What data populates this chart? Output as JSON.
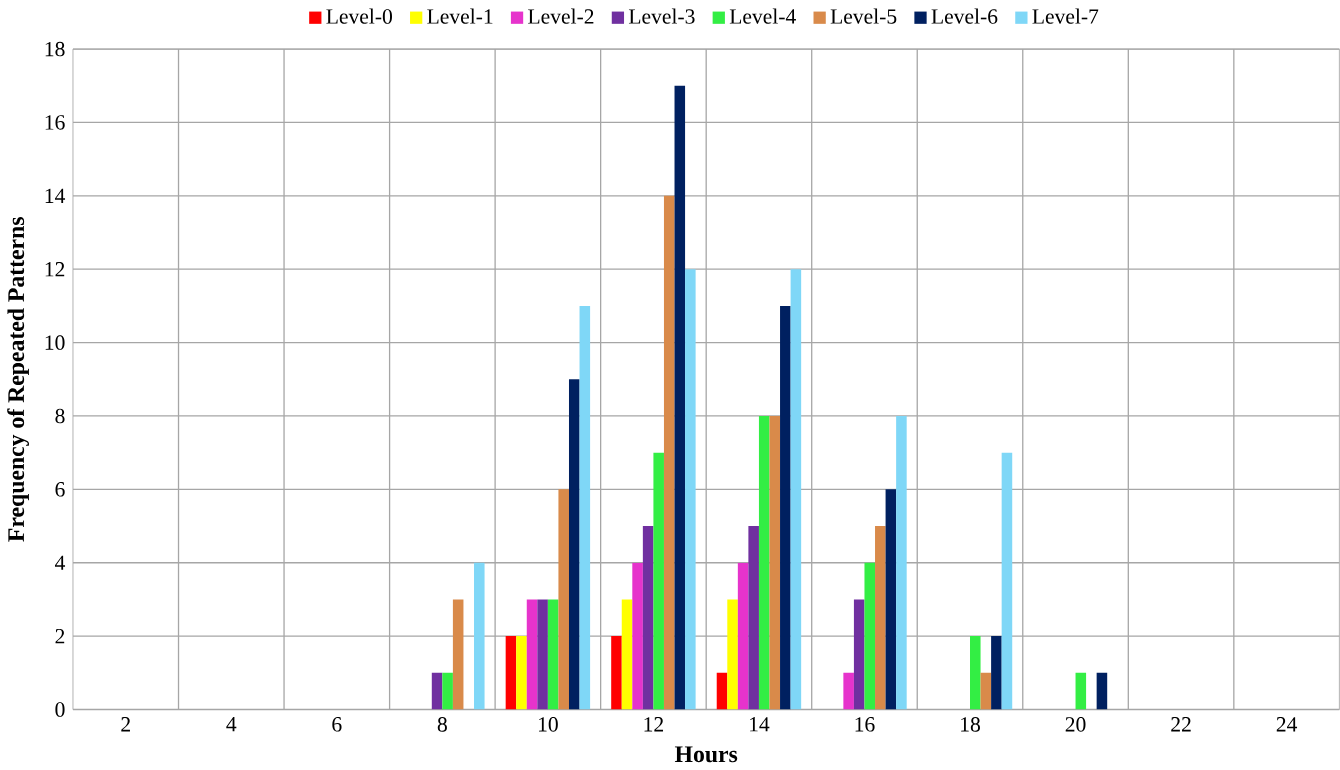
{
  "chart_data": {
    "type": "bar",
    "xlabel": "Hours",
    "ylabel": "Frequency of Repeated Patterns",
    "categories": [
      "2",
      "4",
      "6",
      "8",
      "10",
      "12",
      "14",
      "16",
      "18",
      "20",
      "22",
      "24"
    ],
    "series": [
      {
        "name": "Level-0",
        "color": "#ff0000",
        "values": [
          0,
          0,
          0,
          0,
          2,
          2,
          1,
          0,
          0,
          0,
          0,
          0
        ]
      },
      {
        "name": "Level-1",
        "color": "#ffff00",
        "values": [
          0,
          0,
          0,
          0,
          2,
          3,
          3,
          0,
          0,
          0,
          0,
          0
        ]
      },
      {
        "name": "Level-2",
        "color": "#e633cc",
        "values": [
          0,
          0,
          0,
          0,
          3,
          4,
          4,
          1,
          0,
          0,
          0,
          0
        ]
      },
      {
        "name": "Level-3",
        "color": "#7030a0",
        "values": [
          0,
          0,
          0,
          1,
          3,
          5,
          5,
          3,
          0,
          0,
          0,
          0
        ]
      },
      {
        "name": "Level-4",
        "color": "#33ee44",
        "values": [
          0,
          0,
          0,
          1,
          3,
          7,
          8,
          4,
          2,
          1,
          0,
          0
        ]
      },
      {
        "name": "Level-5",
        "color": "#d98a4a",
        "values": [
          0,
          0,
          0,
          3,
          6,
          14,
          8,
          5,
          1,
          0,
          0,
          0
        ]
      },
      {
        "name": "Level-6",
        "color": "#002060",
        "values": [
          0,
          0,
          0,
          0,
          9,
          17,
          11,
          6,
          2,
          1,
          0,
          0
        ]
      },
      {
        "name": "Level-7",
        "color": "#7fd7f7",
        "values": [
          0,
          0,
          0,
          4,
          11,
          12,
          12,
          8,
          7,
          0,
          0,
          0
        ]
      }
    ],
    "ylim": [
      0,
      18
    ],
    "yticks": [
      0,
      2,
      4,
      6,
      8,
      10,
      12,
      14,
      16,
      18
    ],
    "grid": true,
    "legend": "top"
  }
}
